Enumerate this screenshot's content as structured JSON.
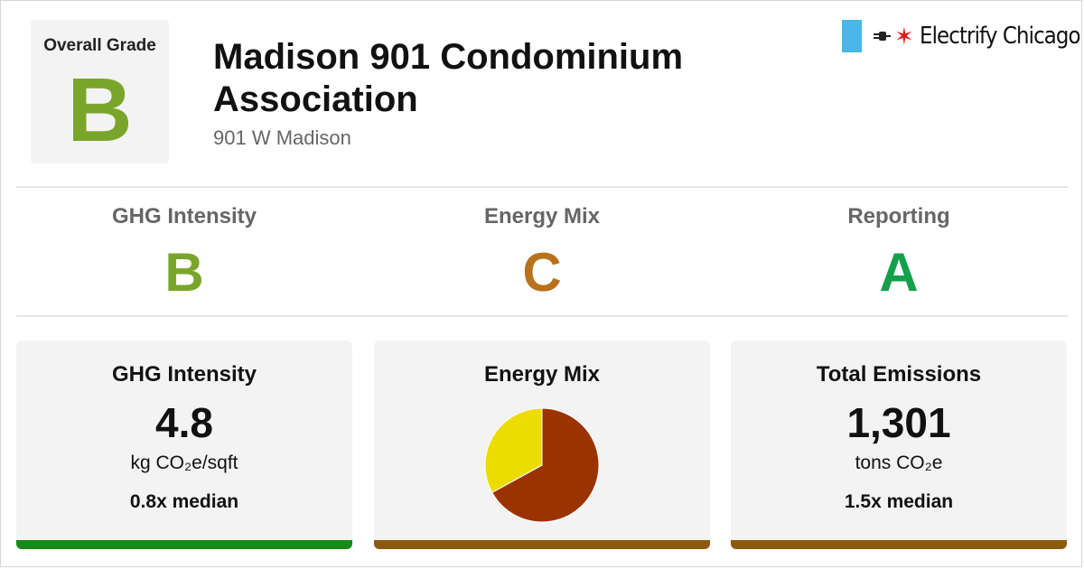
{
  "header": {
    "overall_label": "Overall Grade",
    "overall_grade": "B",
    "overall_color": "#7aa52b",
    "title": "Madison 901 Condominium Association",
    "address": "901 W Madison"
  },
  "brand": {
    "name": "Electrify Chicago",
    "flag_color": "#47b8e8",
    "star_color": "#e0201e",
    "icons": [
      "plug-icon",
      "star-icon"
    ]
  },
  "grades": [
    {
      "label": "GHG Intensity",
      "grade": "B",
      "color": "#7aa52b"
    },
    {
      "label": "Energy Mix",
      "grade": "C",
      "color": "#b8721c"
    },
    {
      "label": "Reporting",
      "grade": "A",
      "color": "#14a04b"
    }
  ],
  "cards": {
    "ghg": {
      "title": "GHG Intensity",
      "value": "4.8",
      "unit": "kg CO₂e/sqft",
      "median": "0.8x median",
      "bar_color": "#178a17"
    },
    "mix": {
      "title": "Energy Mix",
      "bar_color": "#8b5a0f"
    },
    "total": {
      "title": "Total Emissions",
      "value": "1,301",
      "unit": "tons CO₂e",
      "median": "1.5x median",
      "bar_color": "#8b5a0f"
    }
  },
  "chart_data": {
    "type": "pie",
    "slices": [
      {
        "value": 67,
        "color": "#9b3300"
      },
      {
        "value": 33,
        "color": "#ecdc00"
      }
    ]
  }
}
